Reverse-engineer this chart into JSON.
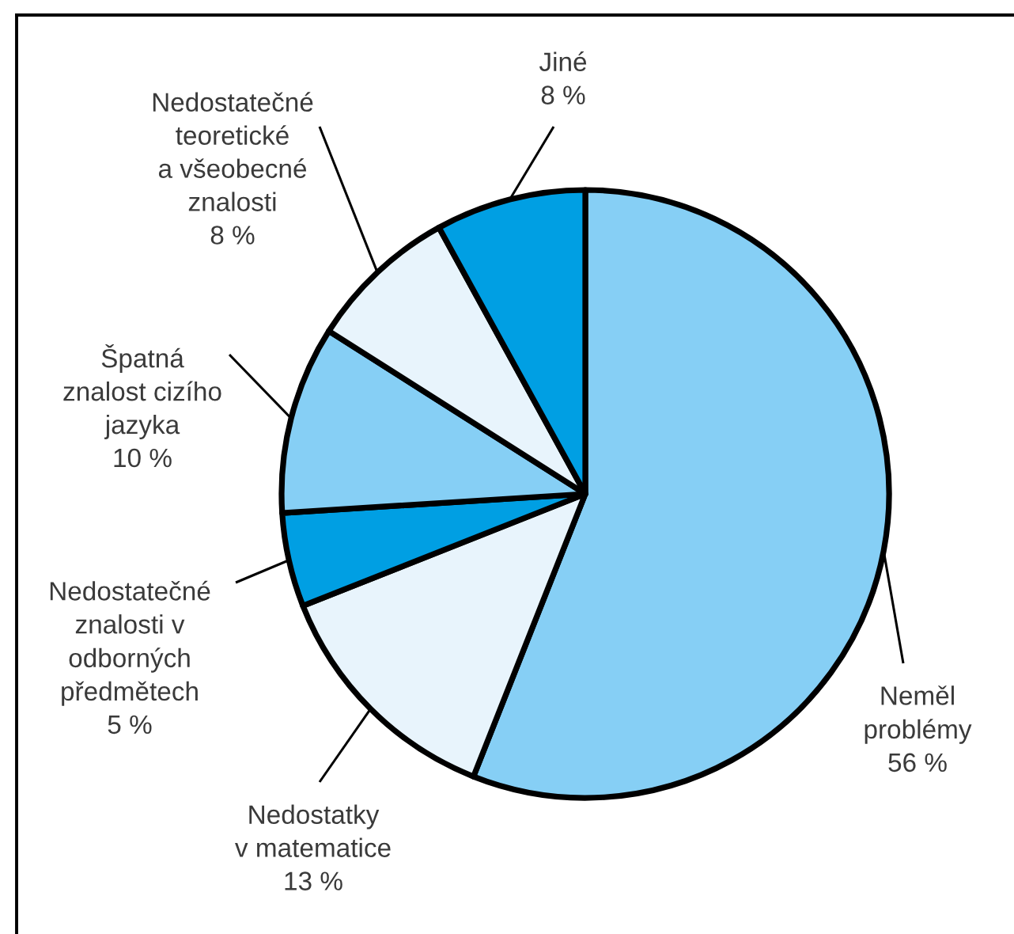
{
  "chart_data": {
    "type": "pie",
    "categories": [
      "Neměl\nproblémy",
      "Nedostatky\nv matematice",
      "Nedostatečné\nznalosti v\nodborných\npředmětech",
      "Špatná\nznalost cizího\njazyka",
      "Nedostatečné\nteoretické\na všeobecné\nznalosti",
      "Jiné"
    ],
    "values": [
      56,
      13,
      5,
      10,
      8,
      8
    ],
    "value_labels": [
      "56 %",
      "13 %",
      "5 %",
      "10 %",
      "8 %",
      "8 %"
    ],
    "colors": [
      "#86cff5",
      "#e8f4fc",
      "#009fe3",
      "#86cff5",
      "#e8f4fc",
      "#009fe3"
    ]
  }
}
